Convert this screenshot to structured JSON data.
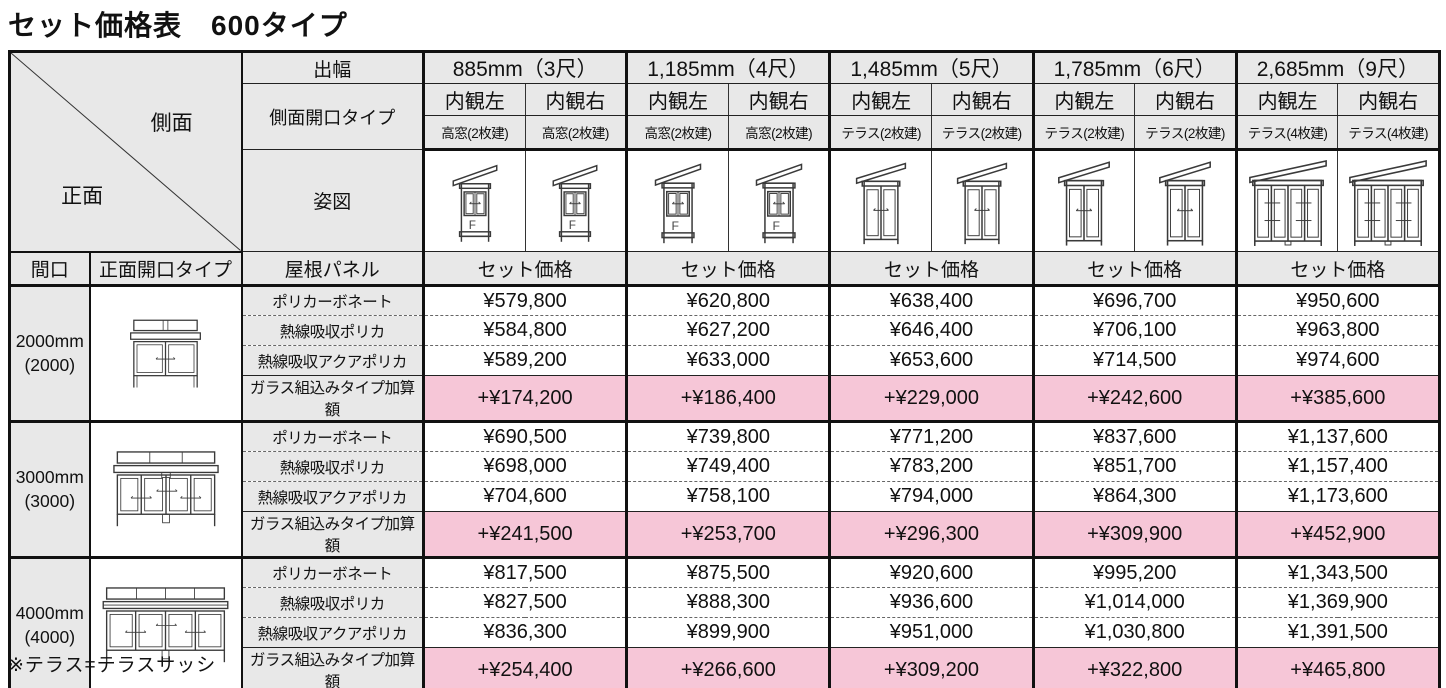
{
  "title": "セット価格表　600タイプ",
  "footnote": "※テラス=テラスサッシ",
  "colors": {
    "header_bg": "#e8e8e8",
    "addon_row_bg": "#f6c6d7",
    "border": "#111111"
  },
  "corner": {
    "top_right": "側面",
    "bottom_left": "正面"
  },
  "header": {
    "depth_label": "出幅",
    "side_opening_label": "側面開口タイプ",
    "elevation_label": "姿図",
    "maguchi_label": "間口",
    "front_opening_label": "正面開口タイプ",
    "roof_panel_label": "屋根パネル",
    "set_price_label": "セット価格",
    "view_left": "内観左",
    "view_right": "内観右"
  },
  "columns": [
    {
      "depth": "885mm（3尺）",
      "left_type": "高窓(2枚建)",
      "right_type": "高窓(2枚建)",
      "icon": "side-highwindow"
    },
    {
      "depth": "1,185mm（4尺）",
      "left_type": "高窓(2枚建)",
      "right_type": "高窓(2枚建)",
      "icon": "side-highwindow"
    },
    {
      "depth": "1,485mm（5尺）",
      "left_type": "テラス(2枚建)",
      "right_type": "テラス(2枚建)",
      "icon": "side-terrace-2panel"
    },
    {
      "depth": "1,785mm（6尺）",
      "left_type": "テラス(2枚建)",
      "right_type": "テラス(2枚建)",
      "icon": "side-terrace-2panel"
    },
    {
      "depth": "2,685mm（9尺）",
      "left_type": "テラス(4枚建)",
      "right_type": "テラス(4枚建)",
      "icon": "side-terrace-4panel"
    }
  ],
  "roof_panels": [
    "ポリカーボネート",
    "熱線吸収ポリカ",
    "熱線吸収アクアポリカ",
    "ガラス組込みタイプ加算額"
  ],
  "groups": [
    {
      "maguchi": "2000mm",
      "maguchi_sub": "(2000)",
      "rows": [
        [
          "¥579,800",
          "¥620,800",
          "¥638,400",
          "¥696,700",
          "¥950,600"
        ],
        [
          "¥584,800",
          "¥627,200",
          "¥646,400",
          "¥706,100",
          "¥963,800"
        ],
        [
          "¥589,200",
          "¥633,000",
          "¥653,600",
          "¥714,500",
          "¥974,600"
        ],
        [
          "+¥174,200",
          "+¥186,400",
          "+¥229,000",
          "+¥242,600",
          "+¥385,600"
        ]
      ]
    },
    {
      "maguchi": "3000mm",
      "maguchi_sub": "(3000)",
      "rows": [
        [
          "¥690,500",
          "¥739,800",
          "¥771,200",
          "¥837,600",
          "¥1,137,600"
        ],
        [
          "¥698,000",
          "¥749,400",
          "¥783,200",
          "¥851,700",
          "¥1,157,400"
        ],
        [
          "¥704,600",
          "¥758,100",
          "¥794,000",
          "¥864,300",
          "¥1,173,600"
        ],
        [
          "+¥241,500",
          "+¥253,700",
          "+¥296,300",
          "+¥309,900",
          "+¥452,900"
        ]
      ]
    },
    {
      "maguchi": "4000mm",
      "maguchi_sub": "(4000)",
      "rows": [
        [
          "¥817,500",
          "¥875,500",
          "¥920,600",
          "¥995,200",
          "¥1,343,500"
        ],
        [
          "¥827,500",
          "¥888,300",
          "¥936,600",
          "¥1,014,000",
          "¥1,369,900"
        ],
        [
          "¥836,300",
          "¥899,900",
          "¥951,000",
          "¥1,030,800",
          "¥1,391,500"
        ],
        [
          "+¥254,400",
          "+¥266,600",
          "+¥309,200",
          "+¥322,800",
          "+¥465,800"
        ]
      ]
    }
  ]
}
